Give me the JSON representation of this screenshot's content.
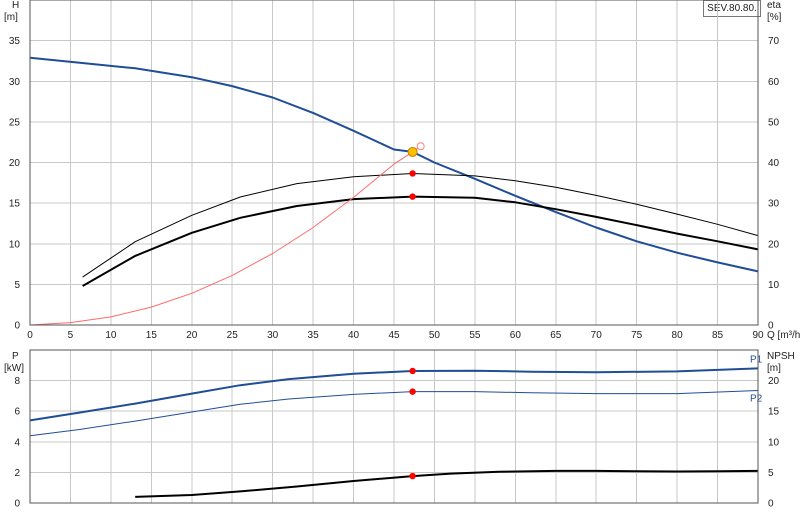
{
  "badge": "SEV.80.80.",
  "chart_data": [
    {
      "type": "line",
      "name": "head-efficiency",
      "xlabel": "Q [m³/h]",
      "xlim": [
        0,
        90
      ],
      "x_ticks": [
        0,
        5,
        10,
        15,
        20,
        25,
        30,
        35,
        40,
        45,
        50,
        55,
        60,
        65,
        70,
        75,
        80,
        85,
        90
      ],
      "y_left": {
        "label_top": "H",
        "label_unit": "[m]",
        "ylim": [
          0,
          40
        ],
        "ticks": [
          0,
          5,
          10,
          15,
          20,
          25,
          30,
          35
        ]
      },
      "y_right": {
        "label_top": "eta",
        "label_unit": "[%]",
        "ylim": [
          0,
          80
        ],
        "ticks": [
          0,
          10,
          20,
          30,
          40,
          50,
          60,
          70
        ]
      },
      "grid": true,
      "series": [
        {
          "name": "",
          "axis": "left",
          "color": "#1f4e96",
          "width": 2,
          "x": [
            0,
            6,
            13,
            20,
            25,
            30,
            35,
            40,
            45,
            47.3,
            50,
            55,
            60,
            65,
            70,
            75,
            80,
            85,
            90
          ],
          "y": [
            32.9,
            32.3,
            31.6,
            30.5,
            29.4,
            28.0,
            26.1,
            23.9,
            21.6,
            21.3,
            20.0,
            18.0,
            15.9,
            13.9,
            12.0,
            10.3,
            8.9,
            7.7,
            6.6
          ]
        },
        {
          "name": "",
          "axis": "right",
          "color": "#000000",
          "width": 1,
          "x": [
            6.5,
            13,
            20,
            26,
            33,
            40,
            47.3,
            55,
            60,
            65,
            70,
            75,
            80,
            85,
            90
          ],
          "y": [
            11.8,
            20.5,
            27.0,
            31.5,
            34.8,
            36.5,
            37.3,
            36.7,
            35.5,
            33.9,
            31.9,
            29.7,
            27.3,
            24.8,
            22.0
          ]
        },
        {
          "name": "",
          "axis": "right",
          "color": "#000000",
          "width": 2,
          "x": [
            6.5,
            13,
            20,
            26,
            33,
            40,
            47.3,
            55,
            60,
            65,
            70,
            75,
            80,
            85,
            90
          ],
          "y": [
            9.6,
            17.0,
            22.7,
            26.4,
            29.3,
            31.0,
            31.6,
            31.3,
            30.2,
            28.5,
            26.6,
            24.6,
            22.5,
            20.6,
            18.6
          ]
        },
        {
          "name": "",
          "axis": "left",
          "color": "#ff6a6a",
          "width": 1,
          "x": [
            0,
            5,
            10,
            15,
            20,
            25,
            30,
            35,
            40,
            45,
            47.3,
            48.3
          ],
          "y": [
            0,
            0.3,
            1.0,
            2.2,
            3.9,
            6.1,
            8.8,
            12.0,
            15.7,
            19.8,
            21.3,
            22.0
          ]
        }
      ],
      "markers": [
        {
          "axis": "left",
          "x": 47.3,
          "y": 21.3,
          "style": "duty-point",
          "color": "#ffc000"
        },
        {
          "axis": "left",
          "x": 48.3,
          "y": 22.0,
          "style": "open-circle",
          "color": "#ff8080"
        },
        {
          "axis": "right",
          "x": 47.3,
          "y": 37.3,
          "style": "dot",
          "color": "#ff0000"
        },
        {
          "axis": "right",
          "x": 47.3,
          "y": 31.6,
          "style": "dot",
          "color": "#ff0000"
        }
      ]
    },
    {
      "type": "line",
      "name": "power-npsh",
      "xlim": [
        0,
        90
      ],
      "y_left": {
        "label_top": "P",
        "label_unit": "[kW]",
        "ylim": [
          0,
          10
        ],
        "ticks": [
          0,
          2,
          4,
          6,
          8
        ]
      },
      "y_right": {
        "label_top": "NPSH",
        "label_unit": "[m]",
        "ylim": [
          0,
          25
        ],
        "ticks": [
          0,
          5,
          10,
          15,
          20
        ]
      },
      "grid": true,
      "series": [
        {
          "name": "P1",
          "axis": "left",
          "color": "#1f4e96",
          "width": 2,
          "x": [
            0,
            6,
            13,
            20,
            26,
            32,
            40,
            47.3,
            55,
            62,
            70,
            80,
            90
          ],
          "y": [
            5.4,
            5.9,
            6.5,
            7.15,
            7.7,
            8.1,
            8.45,
            8.63,
            8.65,
            8.58,
            8.55,
            8.6,
            8.8
          ]
        },
        {
          "name": "P2",
          "axis": "left",
          "color": "#1f4e96",
          "width": 1,
          "x": [
            0,
            6,
            13,
            20,
            26,
            32,
            40,
            47.3,
            55,
            62,
            70,
            80,
            90
          ],
          "y": [
            4.4,
            4.8,
            5.35,
            5.95,
            6.45,
            6.8,
            7.1,
            7.28,
            7.28,
            7.2,
            7.15,
            7.15,
            7.35
          ]
        },
        {
          "name": "",
          "axis": "right",
          "color": "#000000",
          "width": 2,
          "x": [
            13,
            20,
            26,
            33,
            40,
            47.3,
            52,
            58,
            65,
            70,
            75,
            80,
            85,
            90
          ],
          "y": [
            1.0,
            1.3,
            1.9,
            2.7,
            3.6,
            4.4,
            4.8,
            5.1,
            5.25,
            5.25,
            5.2,
            5.15,
            5.2,
            5.25
          ]
        }
      ],
      "markers": [
        {
          "axis": "left",
          "x": 47.3,
          "y": 8.63,
          "style": "dot",
          "color": "#ff0000"
        },
        {
          "axis": "left",
          "x": 47.3,
          "y": 7.28,
          "style": "dot",
          "color": "#ff0000"
        },
        {
          "axis": "right",
          "x": 47.3,
          "y": 4.4,
          "style": "dot",
          "color": "#ff0000"
        }
      ]
    }
  ]
}
